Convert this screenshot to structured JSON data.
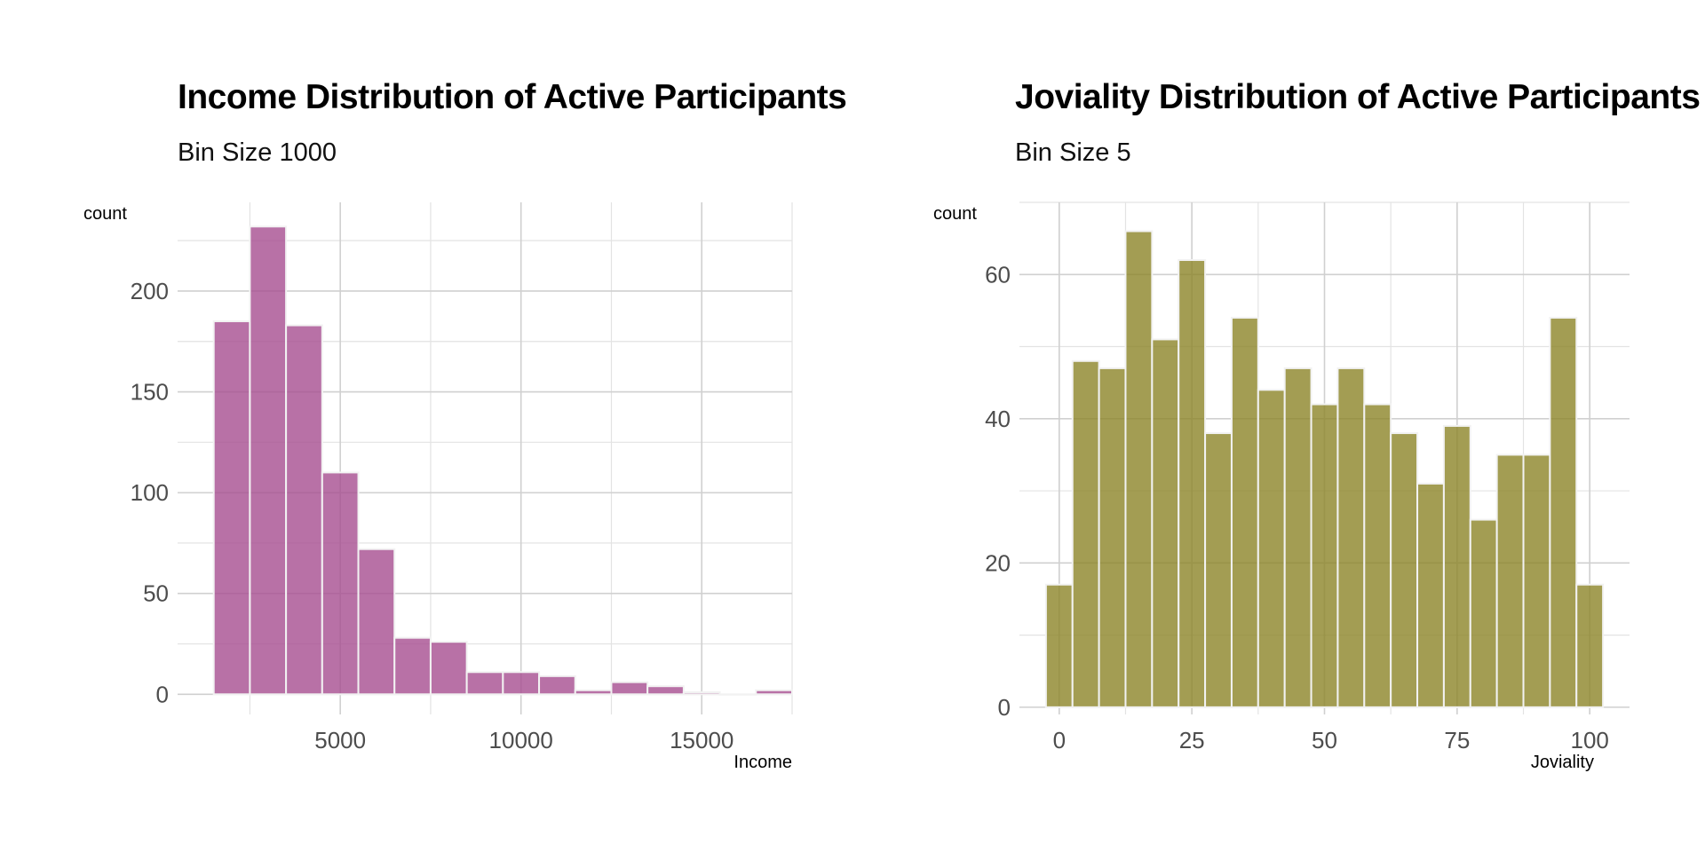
{
  "chart_data": [
    {
      "type": "bar",
      "title": "Income Distribution of Active Participants",
      "subtitle": "Bin Size 1000",
      "xlabel": "Income",
      "ylabel": "count",
      "bin_width": 1000,
      "bins_start": [
        1500,
        2500,
        3500,
        4500,
        5500,
        6500,
        7500,
        8500,
        9500,
        10500,
        11500,
        12500,
        13500,
        14500,
        15500,
        16500
      ],
      "values": [
        185,
        232,
        183,
        110,
        72,
        28,
        26,
        11,
        11,
        9,
        2,
        6,
        4,
        1,
        0,
        2
      ],
      "xlim": [
        500,
        17500
      ],
      "ylim": [
        -10,
        244
      ],
      "xticks": [
        5000,
        10000,
        15000
      ],
      "xtick_labels": [
        "5000",
        "10000",
        "15000"
      ],
      "yticks": [
        0,
        50,
        100,
        150,
        200
      ],
      "ytick_labels": [
        "0",
        "50",
        "100",
        "150",
        "200"
      ],
      "fill_color": "#a64d90",
      "grid": true
    },
    {
      "type": "bar",
      "title": "Joviality Distribution of Active Participants",
      "subtitle": "Bin Size 5",
      "xlabel": "Joviality",
      "ylabel": "count",
      "bin_width": 5,
      "bins_start": [
        -2.5,
        2.5,
        7.5,
        12.5,
        17.5,
        22.5,
        27.5,
        32.5,
        37.5,
        42.5,
        47.5,
        52.5,
        57.5,
        62.5,
        67.5,
        72.5,
        77.5,
        82.5,
        87.5,
        92.5,
        97.5
      ],
      "values": [
        17,
        48,
        47,
        66,
        51,
        62,
        38,
        54,
        44,
        47,
        42,
        47,
        42,
        38,
        31,
        39,
        26,
        35,
        35,
        54,
        17
      ],
      "xlim": [
        -7.5,
        107.5
      ],
      "ylim": [
        -1,
        70
      ],
      "xticks": [
        0,
        25,
        50,
        75,
        100
      ],
      "xtick_labels": [
        "0",
        "25",
        "50",
        "75",
        "100"
      ],
      "yticks": [
        0,
        20,
        40,
        60
      ],
      "ytick_labels": [
        "0",
        "20",
        "40",
        "60"
      ],
      "fill_color": "#8c8428",
      "grid": true
    }
  ]
}
